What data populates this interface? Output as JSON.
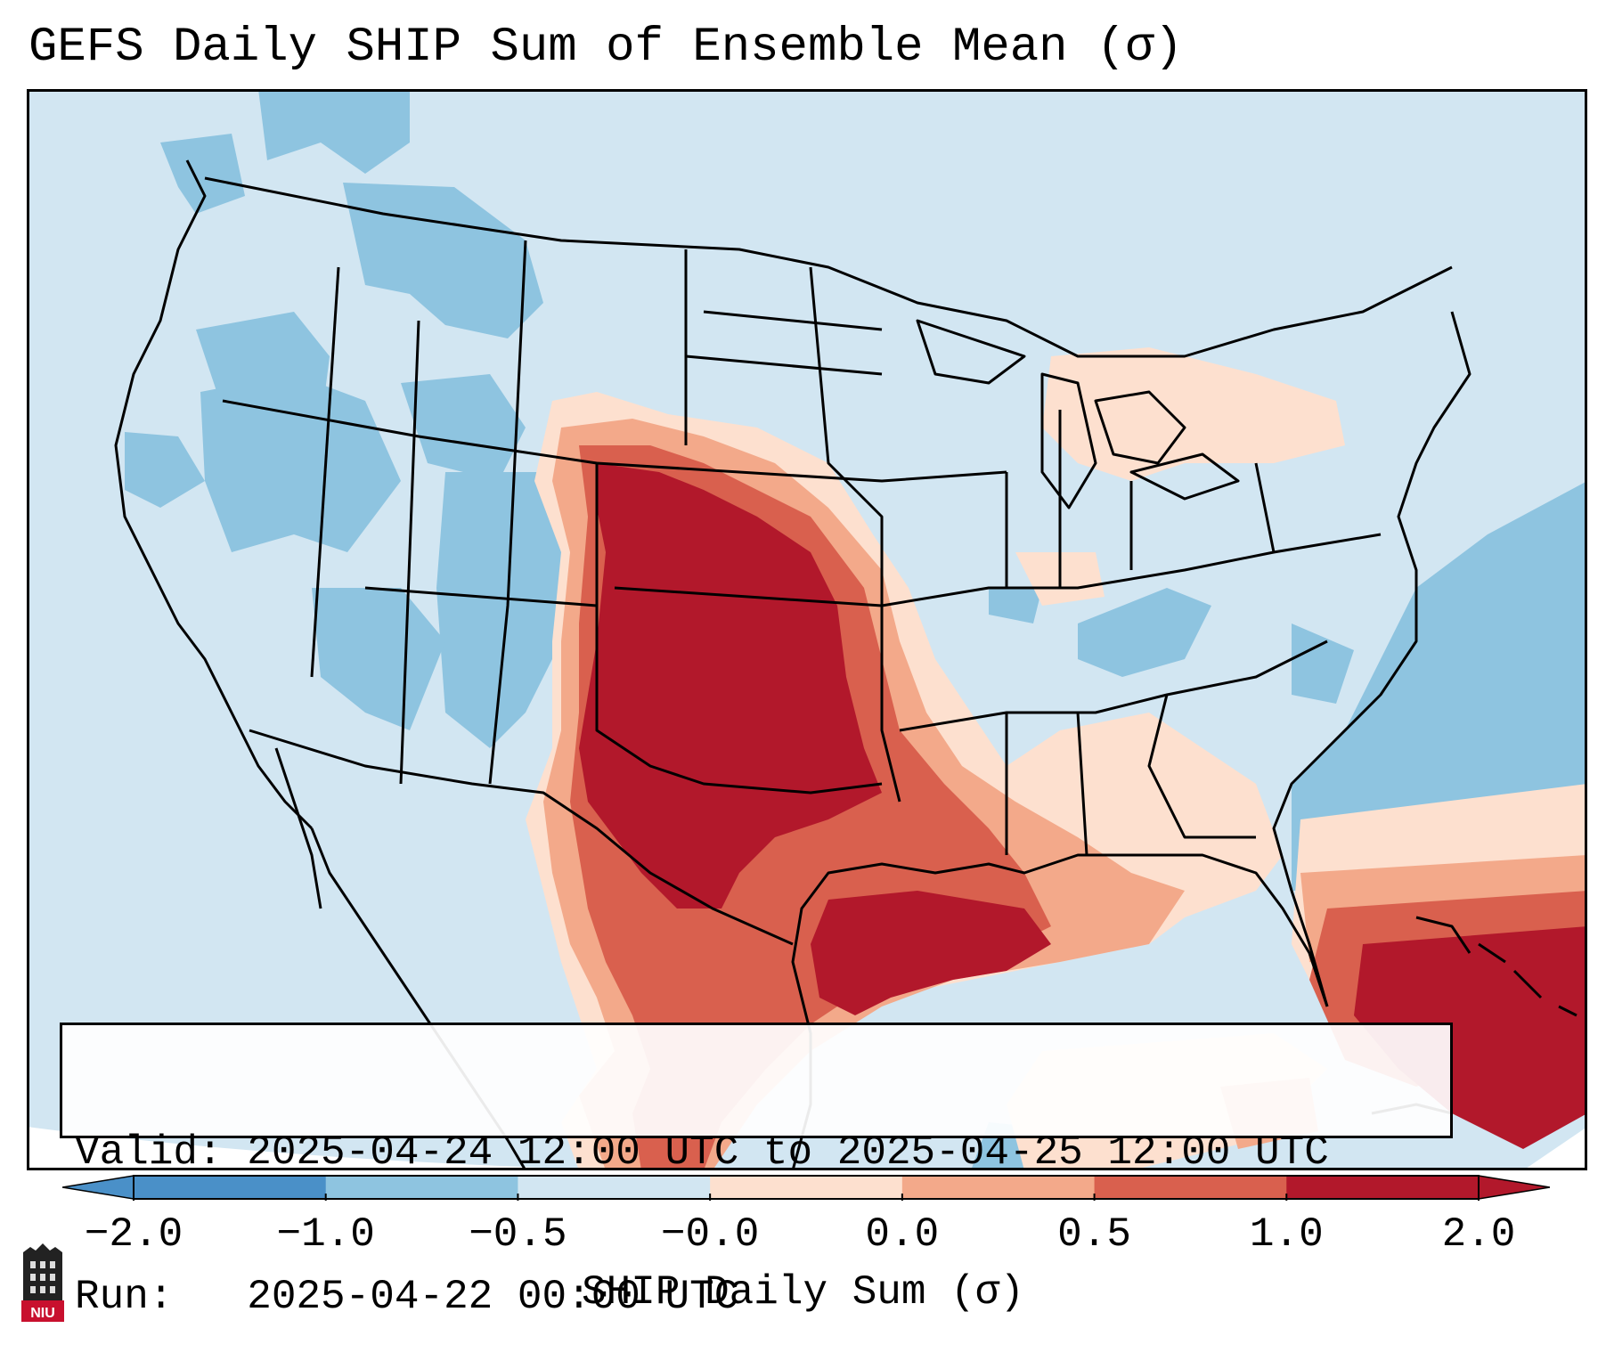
{
  "title": "GEFS Daily SHIP Sum of Ensemble Mean (σ)",
  "info": {
    "valid_line": "Valid: 2025-04-24 12:00 UTC to 2025-04-25 12:00 UTC",
    "run_line": "Run:   2025-04-22 00:00 UTC"
  },
  "colorbar": {
    "label": "SHIP Daily Sum (σ)",
    "ticks": [
      "−2.0",
      "−1.0",
      "−0.5",
      "−0.0",
      "0.0",
      "0.5",
      "1.0",
      "2.0"
    ],
    "colors": [
      "#4a90c8",
      "#8ec4e0",
      "#d2e6f2",
      "#fde0cf",
      "#f3a98a",
      "#d9604e",
      "#b2182b"
    ],
    "extend": "both"
  },
  "logo": {
    "text": "NIU",
    "name": "niu-logo"
  },
  "map": {
    "field_levels": {
      "strong_negative": "#8ec4e0",
      "neutral_negative": "#d2e6f2",
      "weak_positive": "#fde0cf",
      "moderate_positive": "#f3a98a",
      "high_positive": "#d9604e",
      "very_high_positive": "#b2182b"
    },
    "outside_domain_color": "#ffffff",
    "coastline_color": "#000000"
  }
}
